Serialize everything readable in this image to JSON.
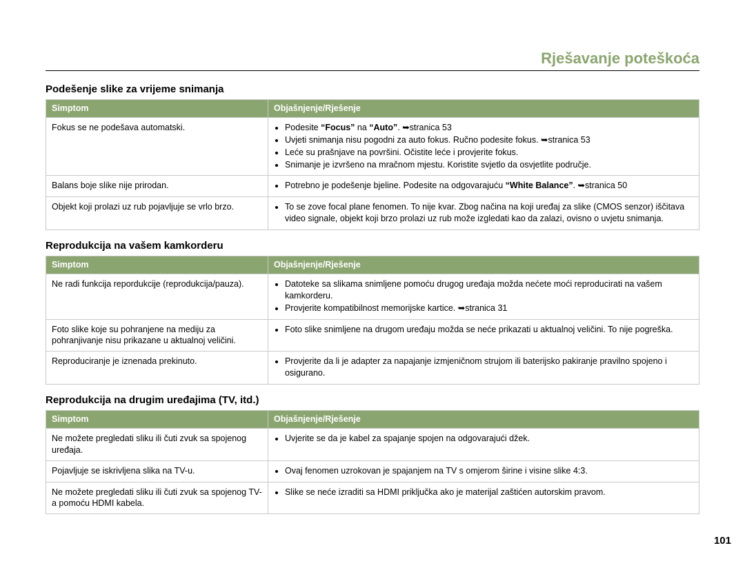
{
  "colors": {
    "accent": "#8ba570",
    "header_text": "#ffffff",
    "border": "#c9c9c9",
    "body_text": "#000000",
    "background": "#ffffff"
  },
  "typography": {
    "font_family": "Arial, Helvetica, sans-serif",
    "body_fontsize_pt": 9.5,
    "section_title_fontsize_pt": 11,
    "chapter_title_fontsize_pt": 16
  },
  "chapter_title": "Rješavanje poteškoća",
  "page_number": "101",
  "column_headers": {
    "symptom": "Simptom",
    "explanation": "Objašnjenje/Rješenje"
  },
  "sections": [
    {
      "title": "Podešenje slike za vrijeme snimanja",
      "rows": [
        {
          "symptom": "Fokus se ne podešava automatski.",
          "explanation_html": "<ul class=\"bullets\"><li>Podesite <strong>“Focus”</strong> na <strong>“Auto”</strong>. <span class=\"arrow\">➥</span>stranica 53</li><li>Uvjeti snimanja nisu pogodni za auto fokus. Ručno podesite fokus. <span class=\"arrow\">➥</span>stranica 53</li><li>Leće su prašnjave na površini. Očistite leće i provjerite fokus.</li><li>Snimanje je izvršeno na mračnom mjestu. Koristite svjetlo da osvjetlite područje.</li></ul>"
        },
        {
          "symptom": "Balans boje slike nije prirodan.",
          "explanation_html": "<ul class=\"bullets\"><li>Potrebno je podešenje bjeline. Podesite na odgovarajuću <strong>“White Balance”</strong>. <span class=\"arrow\">➥</span>stranica 50</li></ul>"
        },
        {
          "symptom": "Objekt koji prolazi uz rub pojavljuje se vrlo brzo.",
          "explanation_html": "<ul class=\"bullets\"><li>To se zove focal plane fenomen. To nije kvar. Zbog načina na koji uređaj za slike (CMOS senzor) iščitava video signale, objekt koji brzo prolazi uz rub može izgledati kao da zalazi, ovisno o uvjetu snimanja.</li></ul>"
        }
      ]
    },
    {
      "title": "Reprodukcija na vašem kamkorderu",
      "rows": [
        {
          "symptom": "Ne radi funkcija repordukcije (reprodukcija/pauza).",
          "explanation_html": "<ul class=\"bullets\"><li>Datoteke sa slikama snimljene pomoću drugog uređaja možda nećete moći reproducirati na vašem kamkorderu.</li><li>Provjerite kompatibilnost memorijske kartice. <span class=\"arrow\">➥</span>stranica 31</li></ul>"
        },
        {
          "symptom": "Foto slike koje su pohranjene na mediju za pohranjivanje nisu prikazane u aktualnoj veličini.",
          "explanation_html": "<ul class=\"bullets\"><li>Foto slike snimljene na drugom uređaju možda se neće prikazati u aktualnoj veličini. To nije pogreška.</li></ul>"
        },
        {
          "symptom": "Reproduciranje je iznenada prekinuto.",
          "explanation_html": "<ul class=\"bullets\"><li>Provjerite da li je adapter za napajanje izmjeničnom strujom ili baterijsko pakiranje pravilno spojeno i osigurano.</li></ul>"
        }
      ]
    },
    {
      "title": "Reprodukcija na drugim uređajima (TV, itd.)",
      "rows": [
        {
          "symptom": "Ne možete pregledati sliku ili čuti zvuk sa spojenog uređaja.",
          "explanation_html": "<ul class=\"bullets\"><li>Uvjerite se da je kabel za spajanje spojen na odgovarajući džek.</li></ul>"
        },
        {
          "symptom": "Pojavljuje se iskrivljena slika na TV-u.",
          "explanation_html": "<ul class=\"bullets\"><li>Ovaj fenomen uzrokovan je spajanjem na TV s omjerom širine i visine slike 4:3.</li></ul>"
        },
        {
          "symptom": "Ne možete pregledati sliku ili čuti zvuk sa spojenog TV-a pomoću HDMI kabela.",
          "explanation_html": "<ul class=\"bullets\"><li>Slike se neće izraditi sa HDMI priključka ako je materijal zaštićen autorskim pravom.</li></ul>"
        }
      ]
    }
  ]
}
